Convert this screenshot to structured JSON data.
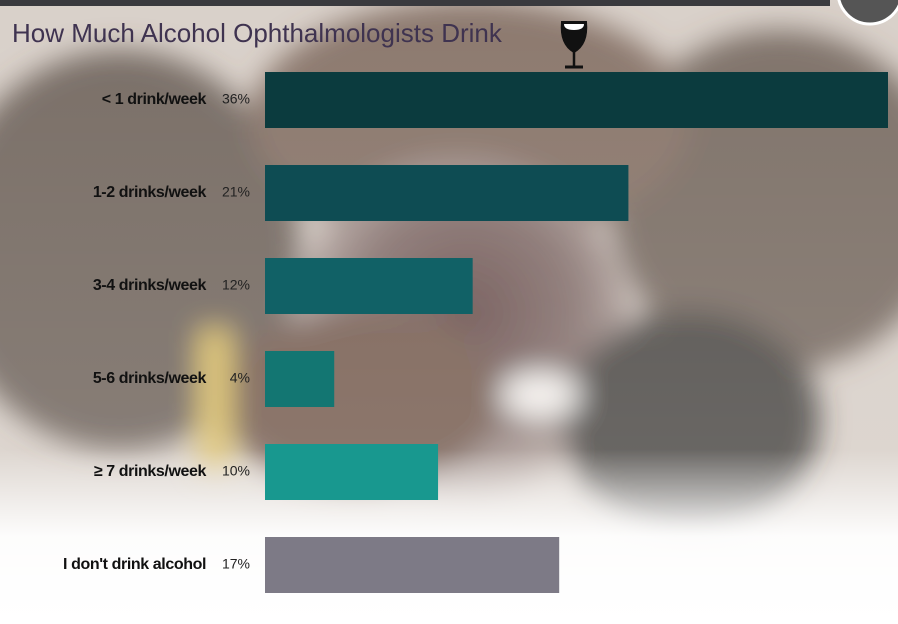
{
  "chart_data": {
    "type": "bar",
    "orientation": "horizontal",
    "title": "How Much Alcohol Ophthalmologists Drink",
    "categories": [
      "< 1 drink/week",
      "1-2 drinks/week",
      "3-4 drinks/week",
      "5-6 drinks/week",
      "≥ 7 drinks/week",
      "I don't drink alcohol"
    ],
    "values": [
      36,
      21,
      12,
      4,
      10,
      17
    ],
    "value_labels": [
      "36%",
      "21%",
      "12%",
      "4%",
      "10%",
      "17%"
    ],
    "colors": [
      "#0b3b3e",
      "#0e4c53",
      "#116166",
      "#137672",
      "#18988f",
      "#7d7a86"
    ],
    "xlim": [
      0,
      36
    ]
  }
}
